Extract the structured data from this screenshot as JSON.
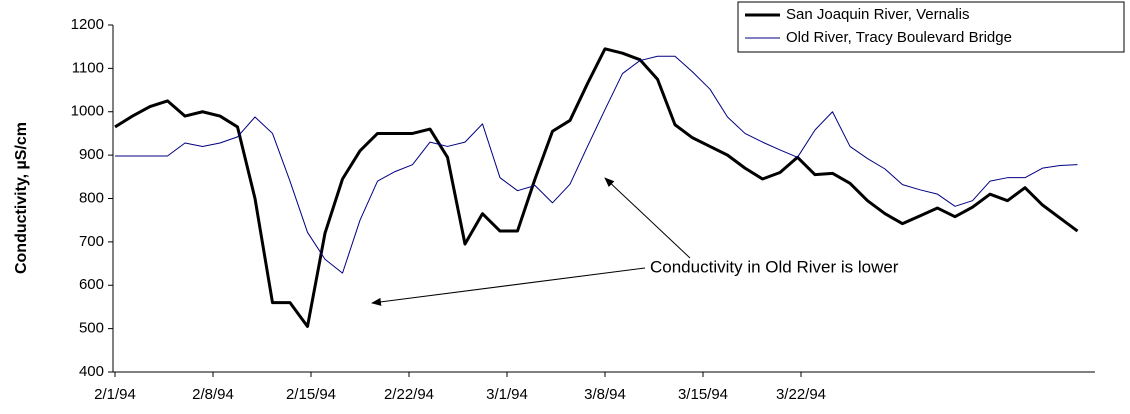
{
  "chart_data": {
    "type": "line",
    "y_label": "Conductivity, µS/cm",
    "annotation": "Conductivity in Old River is lower",
    "x": [
      0,
      1.25,
      2.5,
      3.75,
      5,
      6.25,
      7.5,
      8.75,
      10,
      11.25,
      12.5,
      13.75,
      15,
      16.25,
      17.5,
      18.75,
      20,
      21.25,
      22.5,
      23.75,
      25,
      26.25,
      27.5,
      28.75,
      30,
      31.25,
      32.5,
      33.75,
      35,
      36.25,
      37.5,
      38.75,
      40,
      41.25,
      42.5,
      43.75,
      45,
      46.25,
      47.5,
      48.75,
      50,
      51.25,
      52.5,
      53.75,
      55,
      56.25,
      57.5,
      58.75,
      60,
      61.25,
      62.5,
      63.75,
      65,
      66.25,
      67.5,
      68.75
    ],
    "series": [
      {
        "name": "San Joaquin River, Vernalis",
        "color": "#000000",
        "width": 3,
        "values": [
          965,
          990,
          1012,
          1025,
          990,
          1000,
          990,
          965,
          800,
          560,
          560,
          505,
          720,
          845,
          910,
          950,
          950,
          950,
          960,
          895,
          695,
          765,
          725,
          725,
          845,
          955,
          980,
          1065,
          1145,
          1135,
          1120,
          1075,
          970,
          940,
          920,
          900,
          870,
          845,
          860,
          895,
          855,
          858,
          835,
          795,
          765,
          742,
          760,
          778,
          758,
          780,
          810,
          795,
          825,
          785,
          755,
          725
        ]
      },
      {
        "name": "Old River, Tracy Boulevard Bridge",
        "color": "#000080",
        "width": 1,
        "values": [
          898,
          898,
          898,
          898,
          928,
          920,
          928,
          942,
          988,
          950,
          840,
          722,
          660,
          628,
          750,
          840,
          862,
          878,
          930,
          920,
          930,
          972,
          848,
          818,
          830,
          790,
          833,
          920,
          1005,
          1088,
          1118,
          1128,
          1128,
          1092,
          1052,
          988,
          950,
          930,
          912,
          895,
          958,
          1000,
          920,
          892,
          868,
          832,
          820,
          810,
          782,
          795,
          840,
          848,
          848,
          870,
          876,
          878
        ]
      }
    ],
    "xlim": [
      0,
      70
    ],
    "xticks": [
      {
        "value": 0,
        "label": "2/1/94"
      },
      {
        "value": 7,
        "label": "2/8/94"
      },
      {
        "value": 14,
        "label": "2/15/94"
      },
      {
        "value": 21,
        "label": "2/22/94"
      },
      {
        "value": 28,
        "label": "3/1/94"
      },
      {
        "value": 35,
        "label": "3/8/94"
      },
      {
        "value": 42,
        "label": "3/15/94"
      },
      {
        "value": 49,
        "label": "3/22/94"
      }
    ],
    "ylim": [
      400,
      1200
    ],
    "yticks": [
      400,
      500,
      600,
      700,
      800,
      900,
      1000,
      1100,
      1200
    ],
    "grid": false,
    "legend": "top-right"
  }
}
